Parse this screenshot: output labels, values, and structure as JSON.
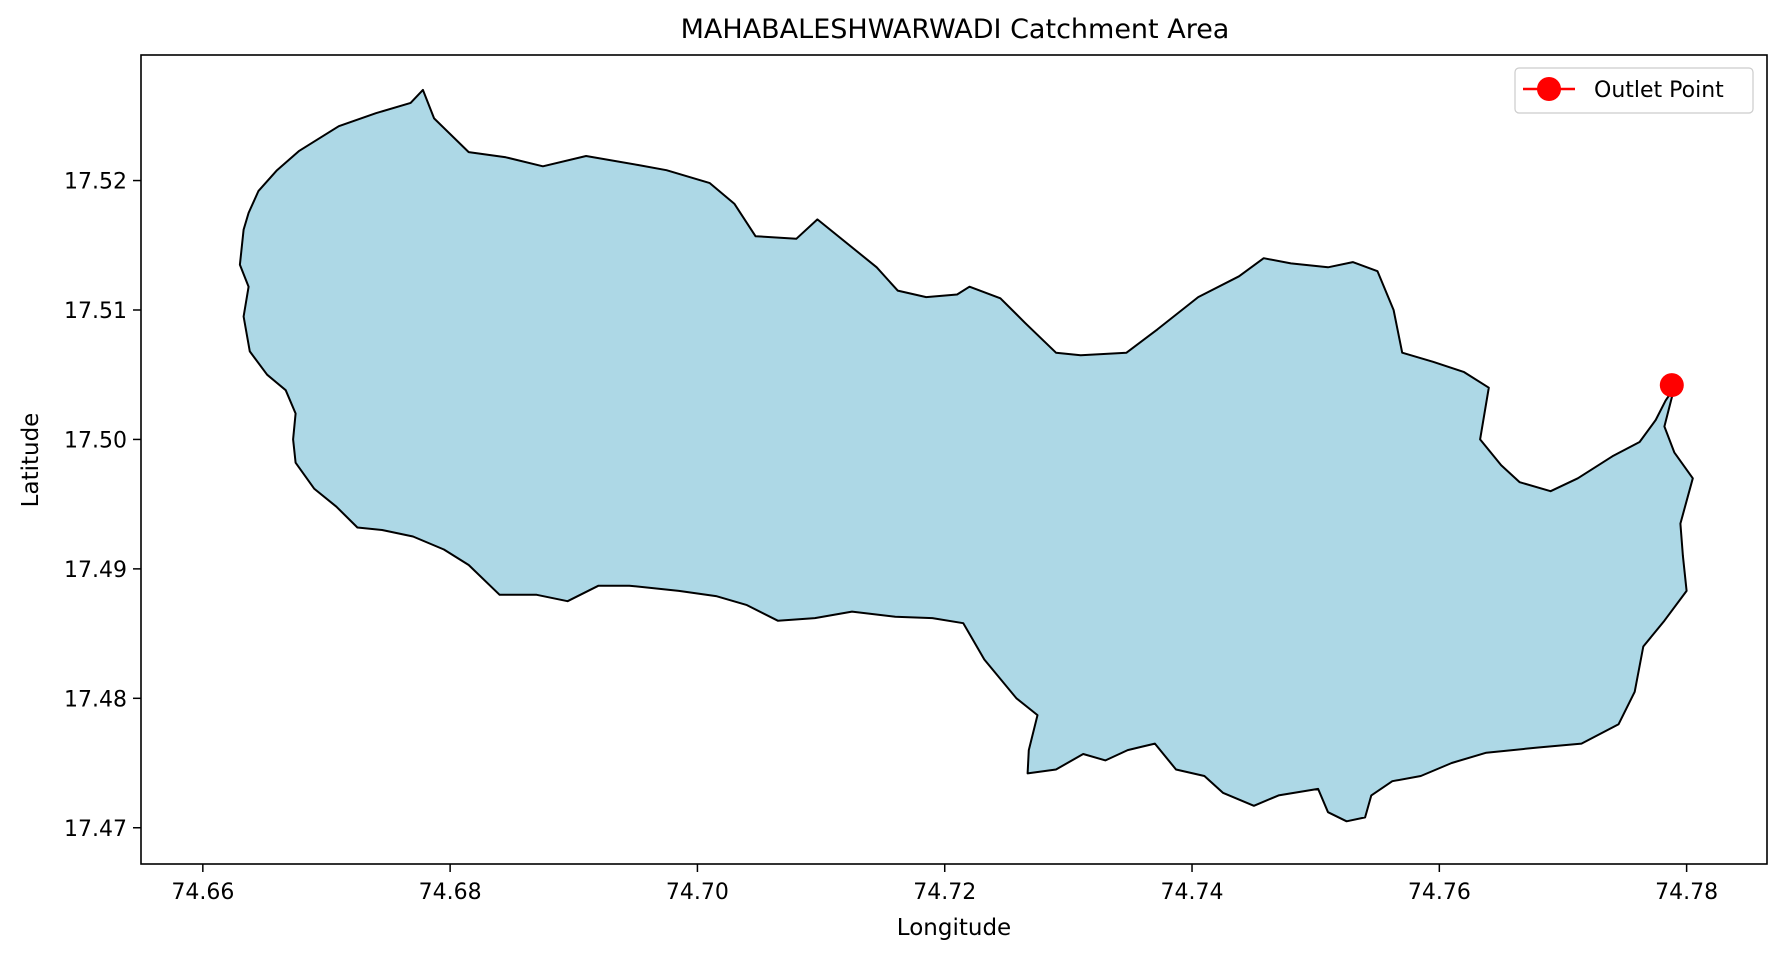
{
  "chart_data": {
    "type": "map",
    "title": "MAHABALESHWARWADI Catchment Area",
    "xlabel": "Longitude",
    "ylabel": "Latitude",
    "xlim": [
      74.655,
      74.7865
    ],
    "ylim": [
      17.4672,
      17.5297
    ],
    "xticks": [
      74.66,
      74.68,
      74.7,
      74.72,
      74.74,
      74.76,
      74.78
    ],
    "xtick_labels": [
      "74.66",
      "74.68",
      "74.70",
      "74.72",
      "74.74",
      "74.76",
      "74.78"
    ],
    "yticks": [
      17.47,
      17.48,
      17.49,
      17.5,
      17.51,
      17.52
    ],
    "ytick_labels": [
      "17.47",
      "17.48",
      "17.49",
      "17.50",
      "17.51",
      "17.52"
    ],
    "grid": false,
    "legend": {
      "position": "top-right",
      "entries": [
        {
          "label": "Outlet Point",
          "color": "#ff0000",
          "marker": "circle"
        }
      ]
    },
    "catchment": {
      "fill": "#add8e6",
      "edge": "#000000",
      "boundary": [
        [
          74.6633,
          17.5162
        ],
        [
          74.6637,
          17.5175
        ],
        [
          74.6645,
          17.5192
        ],
        [
          74.666,
          17.5208
        ],
        [
          74.6678,
          17.5223
        ],
        [
          74.671,
          17.5242
        ],
        [
          74.674,
          17.5252
        ],
        [
          74.6768,
          17.526
        ],
        [
          74.6778,
          17.527
        ],
        [
          74.6787,
          17.5248
        ],
        [
          74.6815,
          17.5222
        ],
        [
          74.6845,
          17.5218
        ],
        [
          74.6875,
          17.5211
        ],
        [
          74.691,
          17.5219
        ],
        [
          74.6952,
          17.5212
        ],
        [
          74.6975,
          17.5208
        ],
        [
          74.701,
          17.5198
        ],
        [
          74.703,
          17.5182
        ],
        [
          74.7047,
          17.5157
        ],
        [
          74.708,
          17.5155
        ],
        [
          74.7097,
          17.517
        ],
        [
          74.7145,
          17.5133
        ],
        [
          74.7162,
          17.5115
        ],
        [
          74.7185,
          17.511
        ],
        [
          74.721,
          17.5112
        ],
        [
          74.722,
          17.5118
        ],
        [
          74.7245,
          17.5109
        ],
        [
          74.7265,
          17.509
        ],
        [
          74.729,
          17.5067
        ],
        [
          74.731,
          17.5065
        ],
        [
          74.7347,
          17.5067
        ],
        [
          74.7372,
          17.5085
        ],
        [
          74.7405,
          17.511
        ],
        [
          74.7438,
          17.5126
        ],
        [
          74.7458,
          17.514
        ],
        [
          74.748,
          17.5136
        ],
        [
          74.751,
          17.5133
        ],
        [
          74.753,
          17.5137
        ],
        [
          74.755,
          17.513
        ],
        [
          74.7563,
          17.51
        ],
        [
          74.757,
          17.5067
        ],
        [
          74.7595,
          17.506
        ],
        [
          74.762,
          17.5052
        ],
        [
          74.764,
          17.504
        ],
        [
          74.7633,
          17.5
        ],
        [
          74.765,
          17.498
        ],
        [
          74.7665,
          17.4967
        ],
        [
          74.769,
          17.496
        ],
        [
          74.7712,
          17.497
        ],
        [
          74.774,
          17.4987
        ],
        [
          74.7762,
          17.4998
        ],
        [
          74.7775,
          17.5015
        ],
        [
          74.7783,
          17.503
        ],
        [
          74.779,
          17.504
        ],
        [
          74.7782,
          17.501
        ],
        [
          74.779,
          17.499
        ],
        [
          74.7805,
          17.497
        ],
        [
          74.7795,
          17.4935
        ],
        [
          74.7797,
          17.491
        ],
        [
          74.78,
          17.4883
        ],
        [
          74.7782,
          17.486
        ],
        [
          74.7765,
          17.484
        ],
        [
          74.7758,
          17.4805
        ],
        [
          74.7745,
          17.478
        ],
        [
          74.7715,
          17.4765
        ],
        [
          74.768,
          17.4762
        ],
        [
          74.7638,
          17.4758
        ],
        [
          74.761,
          17.475
        ],
        [
          74.7585,
          17.474
        ],
        [
          74.7562,
          17.4736
        ],
        [
          74.7545,
          17.4725
        ],
        [
          74.754,
          17.4708
        ],
        [
          74.7525,
          17.4705
        ],
        [
          74.751,
          17.4712
        ],
        [
          74.7502,
          17.473
        ],
        [
          74.747,
          17.4725
        ],
        [
          74.745,
          17.4717
        ],
        [
          74.7425,
          17.4727
        ],
        [
          74.741,
          17.474
        ],
        [
          74.7387,
          17.4745
        ],
        [
          74.737,
          17.4765
        ],
        [
          74.7348,
          17.476
        ],
        [
          74.733,
          17.4752
        ],
        [
          74.7312,
          17.4757
        ],
        [
          74.729,
          17.4745
        ],
        [
          74.7267,
          17.4742
        ],
        [
          74.7268,
          17.476
        ],
        [
          74.7275,
          17.4787
        ],
        [
          74.7258,
          17.48
        ],
        [
          74.7232,
          17.483
        ],
        [
          74.7215,
          17.4858
        ],
        [
          74.719,
          17.4862
        ],
        [
          74.716,
          17.4863
        ],
        [
          74.7125,
          17.4867
        ],
        [
          74.7095,
          17.4862
        ],
        [
          74.7065,
          17.486
        ],
        [
          74.704,
          17.4872
        ],
        [
          74.7015,
          17.4879
        ],
        [
          74.6985,
          17.4883
        ],
        [
          74.6945,
          17.4887
        ],
        [
          74.692,
          17.4887
        ],
        [
          74.6895,
          17.4875
        ],
        [
          74.687,
          17.488
        ],
        [
          74.684,
          17.488
        ],
        [
          74.6815,
          17.4903
        ],
        [
          74.6795,
          17.4915
        ],
        [
          74.677,
          17.4925
        ],
        [
          74.6745,
          17.493
        ],
        [
          74.6725,
          17.4932
        ],
        [
          74.6708,
          17.4948
        ],
        [
          74.669,
          17.4962
        ],
        [
          74.6675,
          17.4982
        ],
        [
          74.6673,
          17.5
        ],
        [
          74.6675,
          17.502
        ],
        [
          74.6667,
          17.5038
        ],
        [
          74.6652,
          17.505
        ],
        [
          74.6638,
          17.5068
        ],
        [
          74.6633,
          17.5095
        ],
        [
          74.6637,
          17.5118
        ],
        [
          74.663,
          17.5135
        ],
        [
          74.6633,
          17.5162
        ]
      ]
    },
    "outlet_point": {
      "name": "Outlet Point",
      "lon": 74.7788,
      "lat": 17.5042,
      "color": "#ff0000"
    }
  }
}
